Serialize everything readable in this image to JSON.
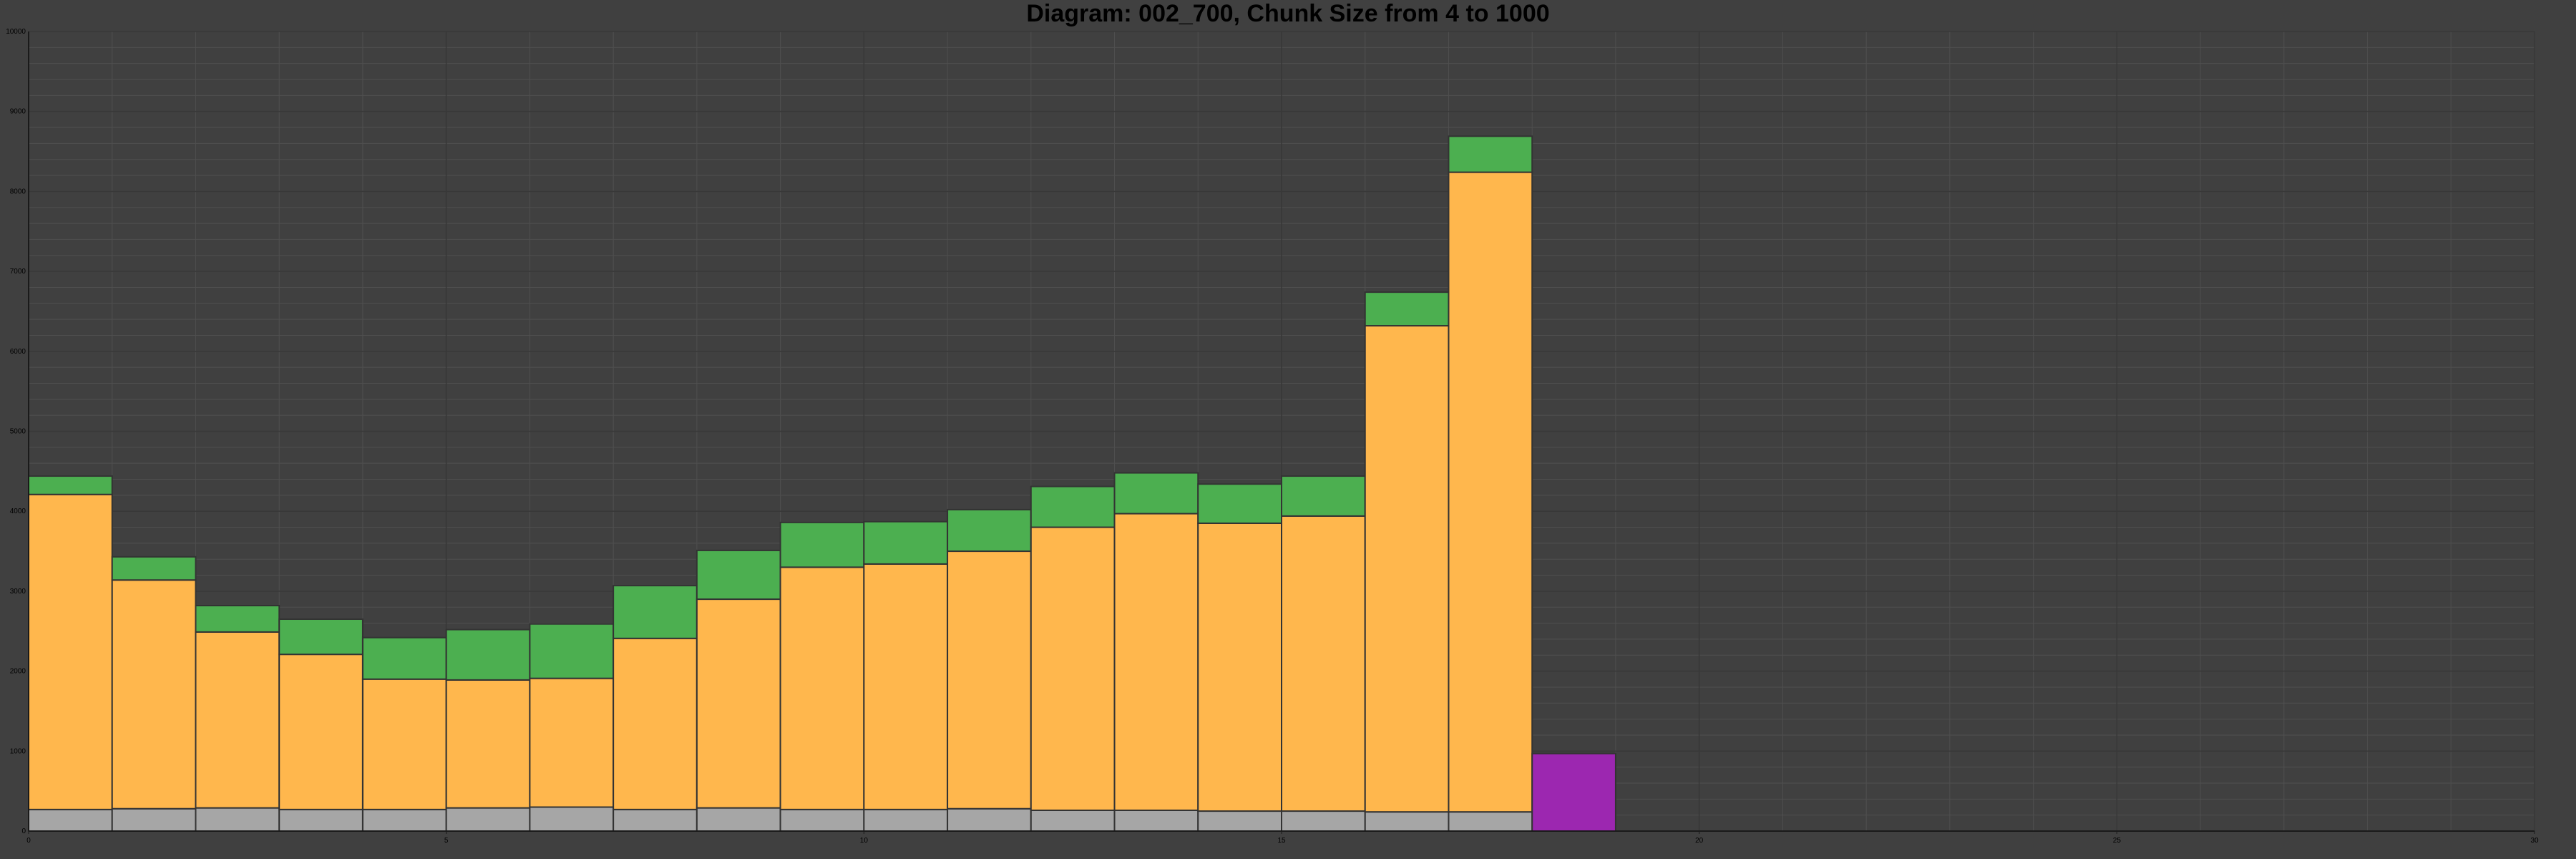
{
  "chart_data": {
    "type": "bar",
    "stacked": true,
    "title": "Diagram: 002_700, Chunk Size from 4 to 1000",
    "xlabel": "",
    "ylabel": "",
    "xlim": [
      0,
      30
    ],
    "ylim": [
      0,
      10000
    ],
    "xticks": [
      0,
      5,
      10,
      15,
      20,
      25,
      30
    ],
    "yticks": [
      0,
      1000,
      2000,
      3000,
      4000,
      5000,
      6000,
      7000,
      8000,
      9000,
      10000
    ],
    "grid": true,
    "legend": "none",
    "x": [
      0.5,
      1.5,
      2.5,
      3.5,
      4.5,
      5.5,
      6.5,
      7.5,
      8.5,
      9.5,
      10.5,
      11.5,
      12.5,
      13.5,
      14.5,
      15.5,
      16.5,
      17.5,
      18.5
    ],
    "series": [
      {
        "color": "#a6a6a6",
        "values": [
          270,
          280,
          290,
          270,
          270,
          290,
          300,
          270,
          290,
          270,
          270,
          280,
          260,
          260,
          250,
          250,
          240,
          240,
          0
        ]
      },
      {
        "color": "#ffb74d",
        "values": [
          3940,
          2860,
          2200,
          1940,
          1630,
          1600,
          1610,
          2140,
          2610,
          3030,
          3070,
          3220,
          3540,
          3710,
          3600,
          3690,
          6080,
          8000,
          0
        ]
      },
      {
        "color": "#4caf50",
        "values": [
          230,
          290,
          330,
          440,
          520,
          630,
          680,
          660,
          610,
          560,
          530,
          520,
          510,
          510,
          490,
          500,
          420,
          450,
          0
        ]
      },
      {
        "color": "#9c27b0",
        "values": [
          0,
          0,
          0,
          0,
          0,
          0,
          0,
          0,
          0,
          0,
          0,
          0,
          0,
          0,
          0,
          0,
          0,
          0,
          970
        ]
      }
    ],
    "colors": {
      "background": "#404040",
      "grid": "#4f4f4f",
      "bar_edge": "#333333",
      "axis": "#1a1a1a",
      "text": "#000000"
    }
  }
}
